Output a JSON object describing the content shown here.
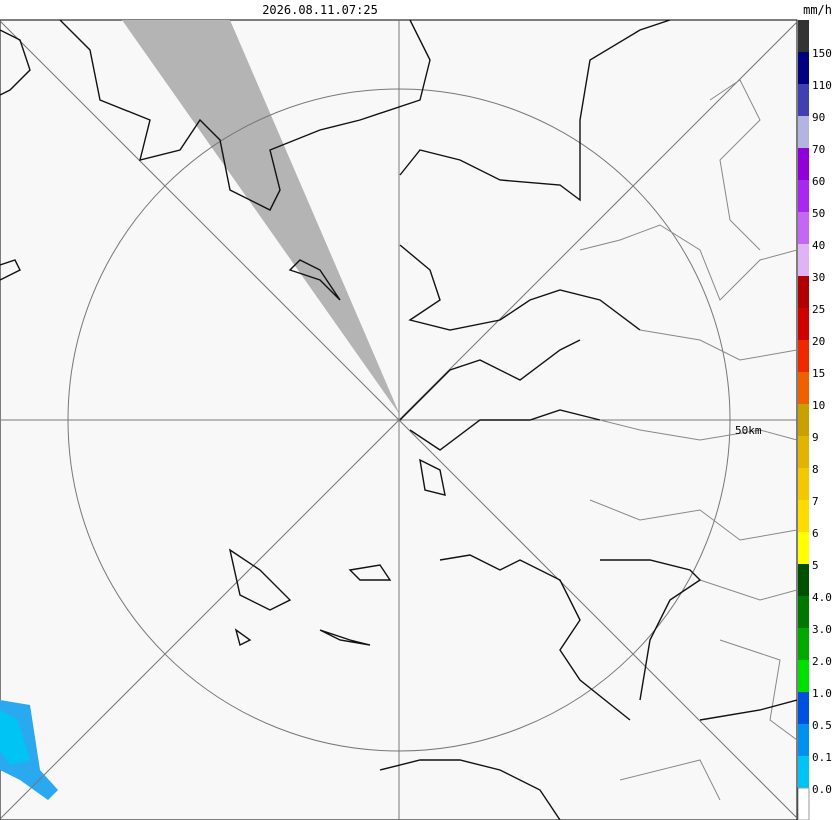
{
  "header": {
    "timestamp": "2026.08.11.07:25",
    "unit": "mm/h"
  },
  "map": {
    "range_label": "50km"
  },
  "legend": {
    "labels": [
      "150",
      "110",
      "90",
      "70",
      "60",
      "50",
      "40",
      "30",
      "25",
      "20",
      "15",
      "10",
      "9",
      "8",
      "7",
      "6",
      "5",
      "4.0",
      "3.0",
      "2.0",
      "1.0",
      "0.5",
      "0.1",
      "0.0"
    ],
    "colors": [
      "#333333",
      "#000080",
      "#4040b0",
      "#b4b4e0",
      "#9000d8",
      "#a828f0",
      "#c468f4",
      "#e0b4f4",
      "#b00000",
      "#d00000",
      "#f02800",
      "#f06000",
      "#c8a000",
      "#e0b400",
      "#f4c800",
      "#ffdc00",
      "#ffff00",
      "#005000",
      "#007800",
      "#00a800",
      "#00e000",
      "#0050e0",
      "#0090f0",
      "#00c4f4",
      "#ffffff"
    ]
  }
}
